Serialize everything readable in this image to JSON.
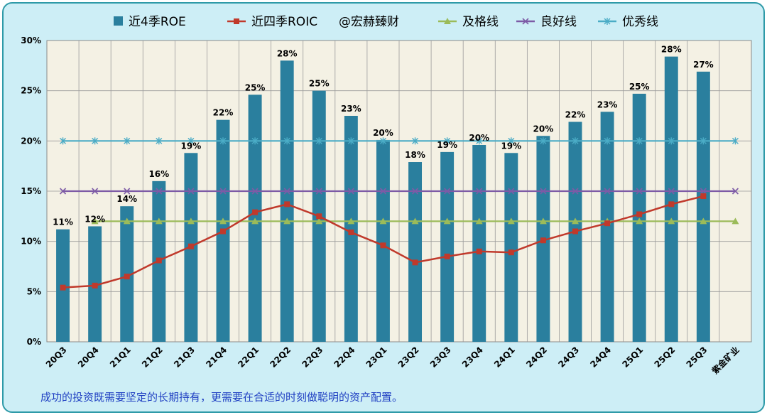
{
  "chart_data": {
    "type": "bar",
    "categories": [
      "20Q3",
      "20Q4",
      "21Q1",
      "21Q2",
      "21Q3",
      "21Q4",
      "22Q1",
      "22Q2",
      "22Q3",
      "22Q4",
      "23Q1",
      "23Q2",
      "23Q3",
      "23Q4",
      "24Q1",
      "24Q2",
      "24Q3",
      "24Q4",
      "25Q1",
      "25Q2",
      "25Q3",
      "紫金矿业"
    ],
    "ylim": [
      0,
      30
    ],
    "yticks": [
      "0%",
      "5%",
      "10%",
      "15%",
      "20%",
      "25%",
      "30%"
    ],
    "grid": true,
    "legend_position": "top",
    "series": [
      {
        "name": "近4季ROE",
        "kind": "bar",
        "color": "#2a7f9e",
        "values": [
          11.2,
          11.5,
          13.5,
          16.0,
          18.8,
          22.1,
          24.6,
          28.0,
          25.0,
          22.5,
          20.1,
          17.9,
          18.9,
          19.6,
          18.8,
          20.5,
          21.9,
          22.9,
          24.7,
          28.4,
          26.9,
          null
        ],
        "labels": [
          "11%",
          "12%",
          "14%",
          "16%",
          "19%",
          "22%",
          "25%",
          "28%",
          "25%",
          "23%",
          "20%",
          "18%",
          "19%",
          "20%",
          "19%",
          "20%",
          "22%",
          "23%",
          "25%",
          "28%",
          "27%",
          ""
        ]
      },
      {
        "name": "近四季ROIC",
        "kind": "line",
        "color": "#c0392b",
        "marker": "square",
        "values": [
          5.4,
          5.6,
          6.5,
          8.1,
          9.5,
          11.0,
          12.9,
          13.7,
          12.5,
          10.9,
          9.6,
          7.9,
          8.5,
          9.0,
          8.9,
          10.1,
          11.0,
          11.8,
          12.7,
          13.7,
          14.5,
          null
        ]
      },
      {
        "name": "及格线",
        "kind": "line",
        "color": "#9bbb59",
        "marker": "triangle",
        "values": [
          null,
          12,
          12,
          12,
          12,
          12,
          12,
          12,
          12,
          12,
          12,
          12,
          12,
          12,
          12,
          12,
          12,
          12,
          12,
          12,
          12,
          12
        ]
      },
      {
        "name": "良好线",
        "kind": "line",
        "color": "#7d5ba6",
        "marker": "x",
        "values": [
          15,
          15,
          15,
          15,
          15,
          15,
          15,
          15,
          15,
          15,
          15,
          15,
          15,
          15,
          15,
          15,
          15,
          15,
          15,
          15,
          15,
          15
        ]
      },
      {
        "name": "优秀线",
        "kind": "line",
        "color": "#4bacc6",
        "marker": "star",
        "values": [
          20,
          20,
          20,
          20,
          20,
          20,
          20,
          20,
          20,
          20,
          20,
          20,
          20,
          20,
          20,
          20,
          20,
          20,
          20,
          20,
          20,
          20
        ]
      }
    ],
    "watermark": "@宏赫臻财"
  },
  "caption": "成功的投资既需要坚定的长期持有，更需要在合适的时刻做聪明的资产配置。"
}
